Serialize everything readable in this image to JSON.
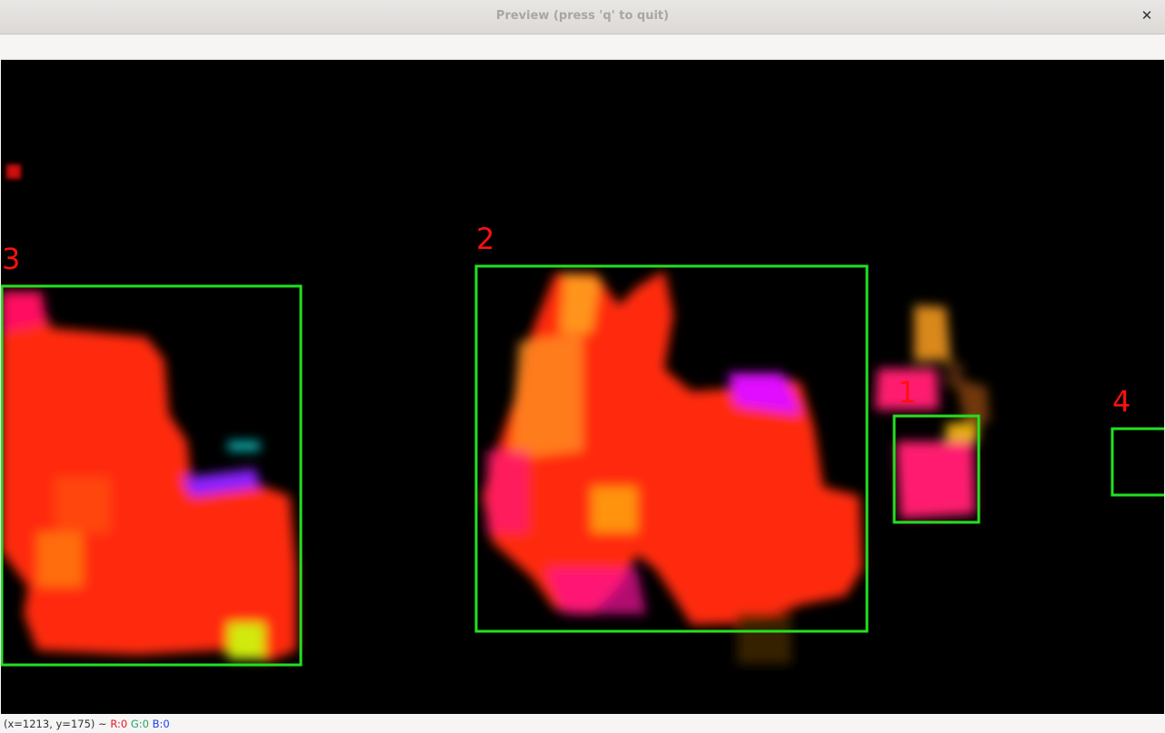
{
  "window": {
    "title": "Preview (press 'q' to quit)",
    "close_glyph": "✕"
  },
  "canvas": {
    "background": "#000000",
    "box_color": "#22e022",
    "label_color": "#ff1010",
    "detections": [
      {
        "id": "1"
      },
      {
        "id": "2"
      },
      {
        "id": "3"
      },
      {
        "id": "4"
      }
    ]
  },
  "status": {
    "coords": "(x=1213, y=175) ~",
    "r": "R:0",
    "g": "G:0",
    "b": "B:0"
  }
}
